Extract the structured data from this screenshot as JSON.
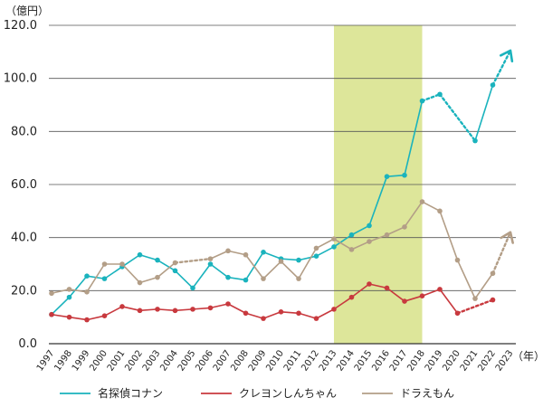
{
  "chart_data": {
    "type": "line",
    "y_unit": "（億円）",
    "x_unit": "（年）",
    "ylim": [
      0,
      120
    ],
    "y_ticks": [
      "0.0",
      "20.0",
      "40.0",
      "60.0",
      "80.0",
      "100.0",
      "120.0"
    ],
    "grid": true,
    "legend_position": "bottom",
    "highlight_range": {
      "from": "2013",
      "to": "2018",
      "color": "#dde69a"
    },
    "categories": [
      "1997",
      "1998",
      "1999",
      "2000",
      "2001",
      "2002",
      "2003",
      "2004",
      "2005",
      "2006",
      "2007",
      "2008",
      "2009",
      "2010",
      "2011",
      "2012",
      "2013",
      "2014",
      "2015",
      "2016",
      "2017",
      "2018",
      "2019",
      "2020",
      "2021",
      "2022",
      "2023"
    ],
    "series": [
      {
        "name": "名探偵コナン",
        "color": "#1ab3bd",
        "values": [
          11.0,
          17.5,
          25.5,
          24.5,
          29.0,
          33.5,
          31.5,
          27.5,
          21.0,
          30.0,
          25.0,
          24.0,
          34.5,
          32.0,
          31.5,
          33.0,
          36.5,
          41.0,
          44.5,
          63.0,
          63.5,
          91.5,
          94.0,
          null,
          76.5,
          97.5,
          110.5
        ],
        "dotted_from": "2018",
        "dotted_to": "2019",
        "arrow": true
      },
      {
        "name": "クレヨンしんちゃん",
        "color": "#c8393e",
        "values": [
          11.0,
          10.0,
          9.0,
          10.5,
          14.0,
          12.5,
          13.0,
          12.5,
          13.0,
          13.5,
          15.0,
          11.5,
          9.5,
          12.0,
          11.5,
          9.5,
          13.0,
          17.5,
          22.5,
          21.0,
          16.0,
          18.0,
          20.5,
          11.5,
          null,
          16.5,
          null
        ],
        "dotted_from": "2020",
        "dotted_to": "2022",
        "arrow": false
      },
      {
        "name": "ドラえもん",
        "color": "#b39e87",
        "values": [
          19.0,
          20.5,
          19.5,
          30.0,
          30.0,
          23.0,
          25.0,
          30.5,
          null,
          32.0,
          35.0,
          33.5,
          24.5,
          31.0,
          24.5,
          36.0,
          39.5,
          35.5,
          38.5,
          41.0,
          44.0,
          53.5,
          50.0,
          31.5,
          17.0,
          26.5,
          42.0
        ],
        "dotted_from": "2022",
        "dotted_to": "2023",
        "gap_dotted": [
          "2004",
          "2006"
        ],
        "arrow": true
      }
    ]
  }
}
